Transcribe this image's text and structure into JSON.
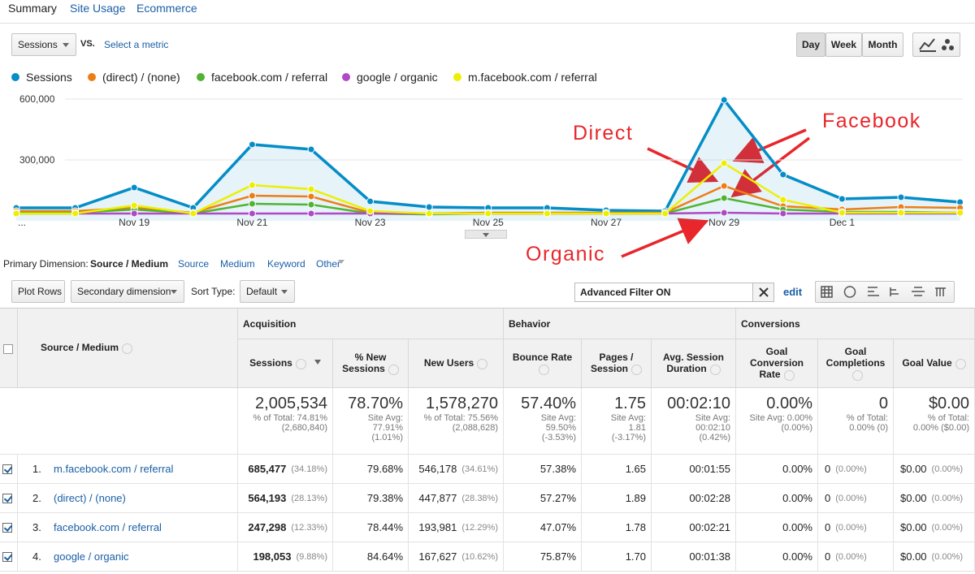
{
  "tabs": [
    "Summary",
    "Site Usage",
    "Ecommerce"
  ],
  "metric": "Sessions",
  "vs": "VS.",
  "select_metric": "Select a metric",
  "periods": [
    "Day",
    "Week",
    "Month"
  ],
  "chart_data": {
    "type": "line",
    "categories": [
      "...",
      null,
      "Nov 19",
      null,
      "Nov 21",
      null,
      "Nov 23",
      null,
      "Nov 25",
      null,
      "Nov 27",
      null,
      "Nov 29",
      null,
      "Dec 1",
      null,
      null
    ],
    "series": [
      {
        "name": "Sessions",
        "color": "#058dc7",
        "values": [
          64000,
          64000,
          164000,
          64000,
          376000,
          352000,
          96000,
          68000,
          64000,
          64000,
          52000,
          48000,
          596000,
          228000,
          108000,
          116000,
          92000
        ]
      },
      {
        "name": "(direct) / (none)",
        "color": "#ed7e17",
        "values": [
          48000,
          48000,
          64000,
          40000,
          124000,
          120000,
          40000,
          36000,
          40000,
          40000,
          40000,
          40000,
          172000,
          72000,
          56000,
          68000,
          64000
        ]
      },
      {
        "name": "facebook.com / referral",
        "color": "#50b432",
        "values": [
          40000,
          40000,
          56000,
          36000,
          84000,
          80000,
          36000,
          32000,
          36000,
          36000,
          36000,
          36000,
          112000,
          56000,
          44000,
          44000,
          40000
        ]
      },
      {
        "name": "google / organic",
        "color": "#af49c5",
        "values": [
          36000,
          36000,
          36000,
          36000,
          36000,
          36000,
          36000,
          36000,
          36000,
          36000,
          36000,
          36000,
          40000,
          36000,
          36000,
          36000,
          36000
        ]
      },
      {
        "name": "m.facebook.com / referral",
        "color": "#edef00",
        "values": [
          36000,
          36000,
          76000,
          36000,
          176000,
          156000,
          48000,
          36000,
          36000,
          36000,
          36000,
          36000,
          284000,
          104000,
          40000,
          40000,
          40000
        ]
      }
    ],
    "ylim": [
      0,
      600000
    ],
    "yticks": [
      {
        "value": 300000,
        "label": "300,000"
      },
      {
        "value": 600000,
        "label": "600,000"
      }
    ],
    "grid": true,
    "annotations": [
      "Direct",
      "Facebook",
      "Organic"
    ]
  },
  "dimension": {
    "label": "Primary Dimension:",
    "options": [
      "Source / Medium",
      "Source",
      "Medium",
      "Keyword",
      "Other"
    ]
  },
  "toolbar": {
    "plot_rows": "Plot Rows",
    "secondary": "Secondary dimension",
    "sort_label": "Sort Type:",
    "sort": "Default",
    "filter": "Advanced Filter ON",
    "edit": "edit"
  },
  "table": {
    "groups": [
      "Acquisition",
      "Behavior",
      "Conversions"
    ],
    "columns": [
      "Source / Medium",
      "Sessions",
      "% New Sessions",
      "New Users",
      "Bounce Rate",
      "Pages / Session",
      "Avg. Session Duration",
      "Goal Conversion Rate",
      "Goal Completions",
      "Goal Value"
    ],
    "totals": [
      {
        "value": "2,005,534",
        "note": [
          "% of Total: 74.81%",
          "(2,680,840)"
        ]
      },
      {
        "value": "78.70%",
        "note": [
          "Site Avg:",
          "77.91%",
          "(1.01%)"
        ]
      },
      {
        "value": "1,578,270",
        "note": [
          "% of Total: 75.56%",
          "(2,088,628)"
        ]
      },
      {
        "value": "57.40%",
        "note": [
          "Site Avg:",
          "59.50%",
          "(-3.53%)"
        ]
      },
      {
        "value": "1.75",
        "note": [
          "Site Avg:",
          "1.81",
          "(-3.17%)"
        ]
      },
      {
        "value": "00:02:10",
        "note": [
          "Site Avg:",
          "00:02:10",
          "(0.42%)"
        ]
      },
      {
        "value": "0.00%",
        "note": [
          "Site Avg: 0.00%",
          "(0.00%)"
        ]
      },
      {
        "value": "0",
        "note": [
          "% of Total:",
          "0.00% (0)"
        ]
      },
      {
        "value": "$0.00",
        "note": [
          "% of Total:",
          "0.00% ($0.00)"
        ]
      }
    ],
    "rows": [
      {
        "index": "1.",
        "name": "m.facebook.com / referral",
        "cells": [
          [
            "685,477",
            "(34.18%)"
          ],
          [
            "79.68%"
          ],
          [
            "546,178",
            "(34.61%)"
          ],
          [
            "57.38%"
          ],
          [
            "1.65"
          ],
          [
            "00:01:55"
          ],
          [
            "0.00%"
          ],
          [
            "0",
            "(0.00%)"
          ],
          [
            "$0.00",
            "(0.00%)"
          ]
        ]
      },
      {
        "index": "2.",
        "name": "(direct) / (none)",
        "cells": [
          [
            "564,193",
            "(28.13%)"
          ],
          [
            "79.38%"
          ],
          [
            "447,877",
            "(28.38%)"
          ],
          [
            "57.27%"
          ],
          [
            "1.89"
          ],
          [
            "00:02:28"
          ],
          [
            "0.00%"
          ],
          [
            "0",
            "(0.00%)"
          ],
          [
            "$0.00",
            "(0.00%)"
          ]
        ]
      },
      {
        "index": "3.",
        "name": "facebook.com / referral",
        "cells": [
          [
            "247,298",
            "(12.33%)"
          ],
          [
            "78.44%"
          ],
          [
            "193,981",
            "(12.29%)"
          ],
          [
            "47.07%"
          ],
          [
            "1.78"
          ],
          [
            "00:02:21"
          ],
          [
            "0.00%"
          ],
          [
            "0",
            "(0.00%)"
          ],
          [
            "$0.00",
            "(0.00%)"
          ]
        ]
      },
      {
        "index": "4.",
        "name": "google / organic",
        "cells": [
          [
            "198,053",
            "(9.88%)"
          ],
          [
            "84.64%"
          ],
          [
            "167,627",
            "(10.62%)"
          ],
          [
            "75.87%"
          ],
          [
            "1.70"
          ],
          [
            "00:01:38"
          ],
          [
            "0.00%"
          ],
          [
            "0",
            "(0.00%)"
          ],
          [
            "$0.00",
            "(0.00%)"
          ]
        ]
      }
    ]
  }
}
